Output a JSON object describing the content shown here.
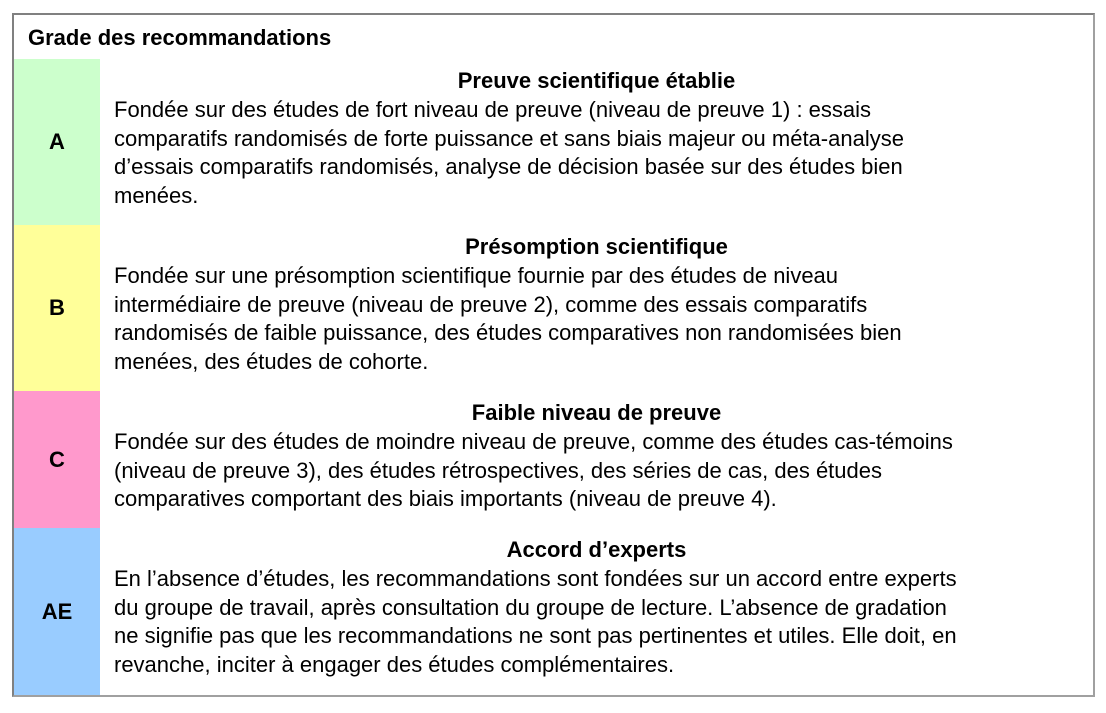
{
  "title": "Grade des recommandations",
  "rows": [
    {
      "grade": "A",
      "color": "#ccffcc",
      "heading": "Preuve scientifique établie",
      "lines": [
        "Fondée sur des études de fort niveau de preuve (niveau de preuve 1) : essais",
        "comparatifs randomisés de forte puissance et sans biais majeur ou méta-analyse",
        "d’essais comparatifs randomisés, analyse de décision basée sur des études bien",
        "menées."
      ]
    },
    {
      "grade": "B",
      "color": "#ffff99",
      "heading": "Présomption scientifique",
      "lines": [
        "Fondée sur une présomption scientifique fournie par des études de niveau",
        "intermédiaire de preuve (niveau de preuve 2), comme des essais comparatifs",
        "randomisés de faible puissance, des études comparatives non randomisées bien",
        "menées, des études de cohorte."
      ]
    },
    {
      "grade": "C",
      "color": "#ff99cc",
      "heading": "Faible niveau de preuve",
      "lines": [
        "Fondée sur des études de moindre niveau de preuve, comme des études cas-témoins",
        "(niveau de preuve 3), des études rétrospectives, des séries de cas, des études",
        "comparatives comportant des biais importants (niveau de preuve 4)."
      ]
    },
    {
      "grade": "AE",
      "color": "#99ccff",
      "heading": "Accord d’experts",
      "lines": [
        "En l’absence d’études, les recommandations sont fondées sur un accord entre experts",
        "du groupe de travail, après consultation du groupe de lecture. L’absence de gradation",
        "ne signifie pas que les recommandations ne sont pas pertinentes et utiles. Elle doit, en",
        "revanche, inciter à engager des études complémentaires."
      ]
    }
  ]
}
